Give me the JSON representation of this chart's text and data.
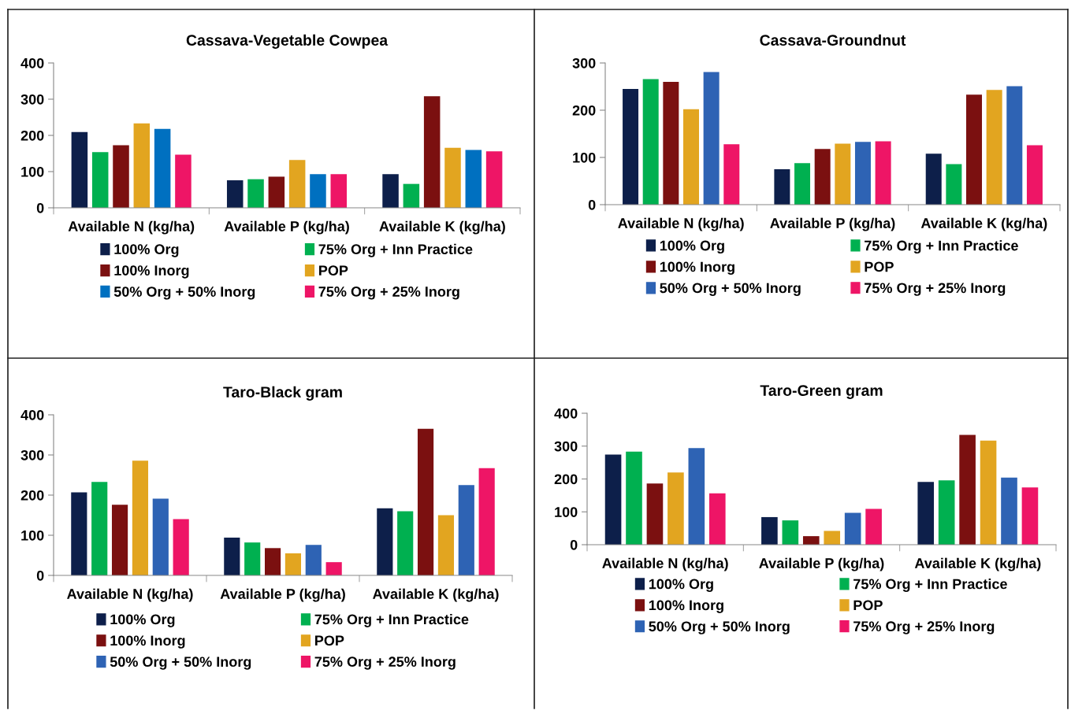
{
  "chart_data": [
    {
      "type": "bar",
      "title": "Cassava-Vegetable Cowpea",
      "categories": [
        "Available N (kg/ha)",
        "Available P (kg/ha)",
        "Available K (kg/ha)"
      ],
      "ylim": [
        0,
        400
      ],
      "yticks": [
        0,
        100,
        200,
        300,
        400
      ],
      "legend": "bottom",
      "grid": false,
      "series": [
        {
          "name": "100% Org",
          "color": "#0d1f4a",
          "values": [
            209,
            76,
            93
          ]
        },
        {
          "name": "75% Org + Inn Practice",
          "color": "#00b050",
          "values": [
            154,
            79,
            66
          ]
        },
        {
          "name": "100% Inorg",
          "color": "#7b1010",
          "values": [
            173,
            86,
            308
          ]
        },
        {
          "name": "POP",
          "color": "#e2a520",
          "values": [
            233,
            132,
            166
          ]
        },
        {
          "name": "50% Org + 50% Inorg",
          "color": "#0070c0",
          "values": [
            218,
            93,
            160
          ]
        },
        {
          "name": "75% Org + 25% Inorg",
          "color": "#ee1566",
          "values": [
            147,
            93,
            156
          ]
        }
      ]
    },
    {
      "type": "bar",
      "title": "Cassava-Groundnut",
      "categories": [
        "Available N (kg/ha)",
        "Available P (kg/ha)",
        "Available K (kg/ha)"
      ],
      "ylim": [
        0,
        300
      ],
      "yticks": [
        0,
        100,
        200,
        300
      ],
      "legend": "bottom",
      "grid": false,
      "series": [
        {
          "name": "100% Org",
          "color": "#0d1f4a",
          "values": [
            245,
            75,
            108
          ]
        },
        {
          "name": "75% Org + Inn Practice",
          "color": "#00b050",
          "values": [
            266,
            88,
            86
          ]
        },
        {
          "name": "100% Inorg",
          "color": "#7b1010",
          "values": [
            260,
            118,
            233
          ]
        },
        {
          "name": "POP",
          "color": "#e2a520",
          "values": [
            202,
            129,
            243
          ]
        },
        {
          "name": "50% Org + 50% Inorg",
          "color": "#2e63b4",
          "values": [
            281,
            133,
            251
          ]
        },
        {
          "name": "75% Org + 25% Inorg",
          "color": "#ee1566",
          "values": [
            128,
            134,
            126
          ]
        }
      ]
    },
    {
      "type": "bar",
      "title": "Taro-Black gram",
      "categories": [
        "Available N (kg/ha)",
        "Available P (kg/ha)",
        "Available K (kg/ha)"
      ],
      "ylim": [
        0,
        400
      ],
      "yticks": [
        0,
        100,
        200,
        300,
        400
      ],
      "legend": "bottom",
      "grid": false,
      "series": [
        {
          "name": "100% Org",
          "color": "#0d1f4a",
          "values": [
            207,
            94,
            167
          ]
        },
        {
          "name": "75% Org + Inn Practice",
          "color": "#00b050",
          "values": [
            233,
            82,
            160
          ]
        },
        {
          "name": "100% Inorg",
          "color": "#7b1010",
          "values": [
            176,
            68,
            365
          ]
        },
        {
          "name": "POP",
          "color": "#e2a520",
          "values": [
            286,
            55,
            150
          ]
        },
        {
          "name": "50% Org + 50% Inorg",
          "color": "#2e63b4",
          "values": [
            191,
            76,
            225
          ]
        },
        {
          "name": "75% Org + 25% Inorg",
          "color": "#ee1566",
          "values": [
            140,
            33,
            267
          ]
        }
      ]
    },
    {
      "type": "bar",
      "title": "Taro-Green gram",
      "categories": [
        "Available N (kg/ha)",
        "Available P (kg/ha)",
        "Available K (kg/ha)"
      ],
      "ylim": [
        0,
        400
      ],
      "yticks": [
        0,
        100,
        200,
        300,
        400
      ],
      "legend": "bottom",
      "grid": false,
      "series": [
        {
          "name": "100% Org",
          "color": "#0d1f4a",
          "values": [
            274,
            84,
            191
          ]
        },
        {
          "name": "75% Org + Inn Practice",
          "color": "#00b050",
          "values": [
            283,
            74,
            196
          ]
        },
        {
          "name": "100% Inorg",
          "color": "#7b1010",
          "values": [
            186,
            26,
            334
          ]
        },
        {
          "name": "POP",
          "color": "#e2a520",
          "values": [
            220,
            42,
            317
          ]
        },
        {
          "name": "50% Org + 50% Inorg",
          "color": "#2e63b4",
          "values": [
            294,
            97,
            204
          ]
        },
        {
          "name": "75% Org + 25% Inorg",
          "color": "#ee1566",
          "values": [
            156,
            109,
            174
          ]
        }
      ]
    }
  ]
}
